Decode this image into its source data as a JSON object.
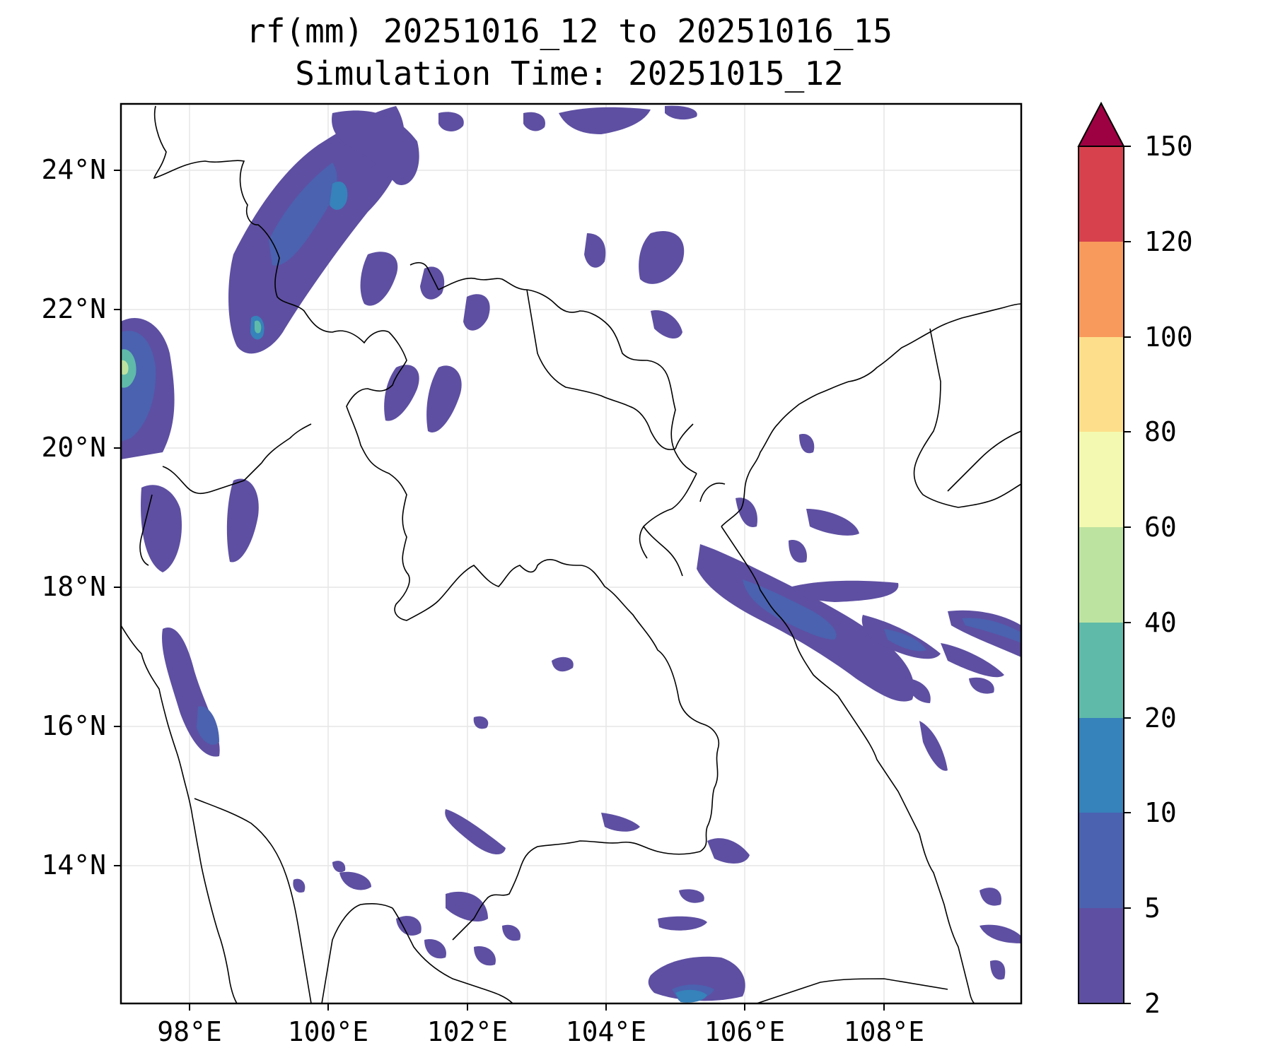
{
  "title_line1": "rf(mm) 20251016_12 to 20251016_15",
  "title_line2": "Simulation Time: 20251015_12",
  "axes": {
    "lat_labels": [
      "24°N",
      "22°N",
      "20°N",
      "18°N",
      "16°N",
      "14°N"
    ],
    "lon_labels": [
      "98°E",
      "100°E",
      "102°E",
      "104°E",
      "106°E",
      "108°E"
    ]
  },
  "colorbar": {
    "levels": [
      "150",
      "120",
      "100",
      "80",
      "60",
      "40",
      "20",
      "10",
      "5",
      "2"
    ],
    "colors_bottom_to_top": [
      "#5e4fa2",
      "#4a62b0",
      "#3682ba",
      "#5fbaa9",
      "#bde3a1",
      "#f3f9b0",
      "#fddf8b",
      "#f89a5b",
      "#d7414e"
    ],
    "extend_color": "#9e0142",
    "extend": "max"
  },
  "legend_colors": {
    "low": "#5e4fa2",
    "mid": "#3682ba",
    "high": "#5fbaa9",
    "peak": "#bde3a1"
  }
}
